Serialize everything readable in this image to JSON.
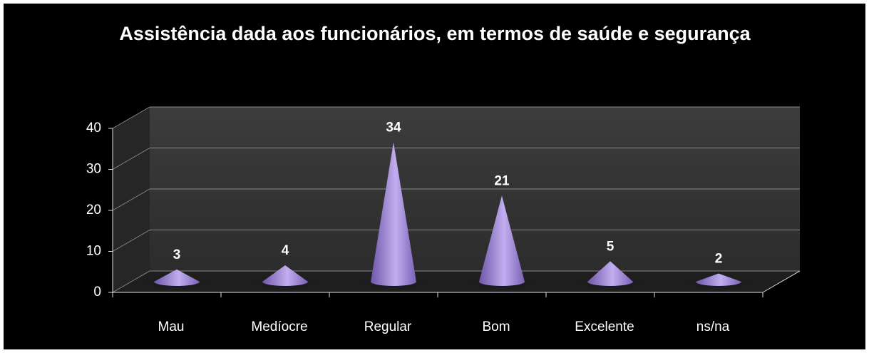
{
  "chart_data": {
    "type": "cone",
    "title": "Assistência dada aos funcionários, em termos de saúde e segurança",
    "categories": [
      "Mau",
      "Medíocre",
      "Regular",
      "Bom",
      "Excelente",
      "ns/na"
    ],
    "values": [
      3,
      4,
      34,
      21,
      5,
      2
    ],
    "color": "#9b82d2",
    "ylim": [
      0,
      40
    ],
    "yticks": [
      0,
      10,
      20,
      30,
      40
    ],
    "grid": true
  }
}
